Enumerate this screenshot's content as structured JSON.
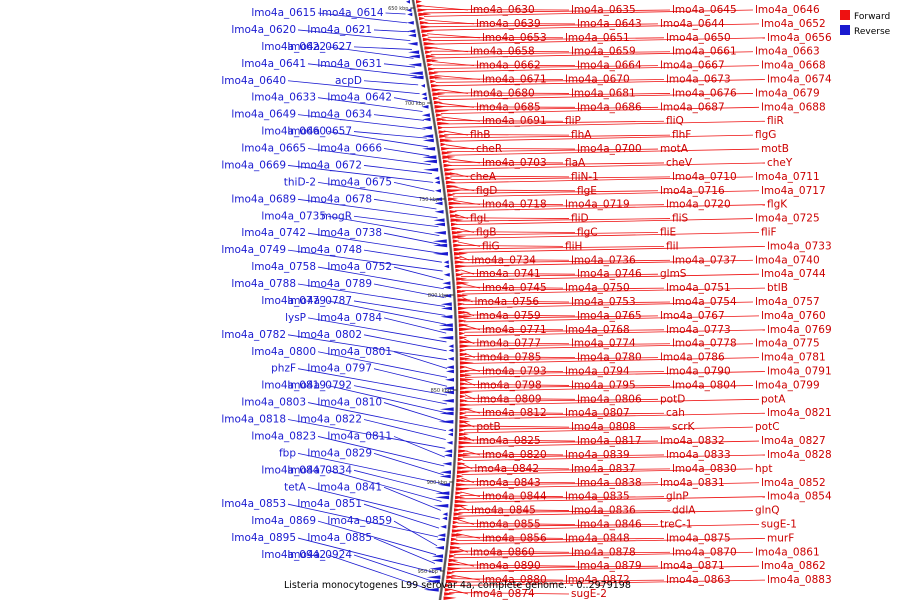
{
  "colors": {
    "forward": "#ee1111",
    "reverse": "#1a1ad0",
    "backbone": "#555555"
  },
  "title": "Listeria monocytogenes L99 serovar 4a, complete genome. - 0..2979198",
  "legend": [
    {
      "label": "Forward",
      "color": "#ee1111"
    },
    {
      "label": "Reverse",
      "color": "#1a1ad0"
    }
  ],
  "ticks": [
    "650 kbp",
    "700 kbp",
    "750 kbp",
    "800 kbp",
    "850 kbp",
    "900 kbp",
    "950 kbp"
  ],
  "reverse_labels": [
    "lmo4a_0614",
    "lmo4a_0615",
    "lmo4a_0621",
    "lmo4a_0620",
    "lmo4a_0627",
    "lmo4a_0622",
    "lmo4a_0631",
    "lmo4a_0641",
    "acpD",
    "lmo4a_0640",
    "lmo4a_0642",
    "lmo4a_0633",
    "lmo4a_0634",
    "lmo4a_0649",
    "lmo4a_0657",
    "lmo4a_0660",
    "lmo4a_0666",
    "lmo4a_0665",
    "lmo4a_0672",
    "lmo4a_0669",
    "lmo4a_0675",
    "thiD-2",
    "lmo4a_0678",
    "lmo4a_0689",
    "mogR",
    "lmo4a_0735",
    "lmo4a_0738",
    "lmo4a_0742",
    "lmo4a_0748",
    "lmo4a_0749",
    "lmo4a_0752",
    "lmo4a_0758",
    "lmo4a_0789",
    "lmo4a_0788",
    "lmo4a_0787",
    "lmo4a_0779",
    "lmo4a_0784",
    "lysP",
    "lmo4a_0802",
    "lmo4a_0782",
    "lmo4a_0801",
    "lmo4a_0800",
    "lmo4a_0797",
    "phzF",
    "lmo4a_0792",
    "lmo4a_0819",
    "lmo4a_0810",
    "lmo4a_0803",
    "lmo4a_0822",
    "lmo4a_0818",
    "lmo4a_0811",
    "lmo4a_0823",
    "lmo4a_0829",
    "fbp",
    "lmo4a_0834",
    "lmo4a_0847",
    "lmo4a_0841",
    "tetA",
    "lmo4a_0851",
    "lmo4a_0853",
    "lmo4a_0859",
    "lmo4a_0869",
    "lmo4a_0885",
    "lmo4a_0895",
    "lmo4a_0924",
    "lmo4a_0942"
  ],
  "forward_labels": [
    "lmo4a_0630",
    "lmo4a_0635",
    "lmo4a_0645",
    "lmo4a_0646",
    "lmo4a_0639",
    "lmo4a_0643",
    "lmo4a_0644",
    "lmo4a_0652",
    "lmo4a_0653",
    "lmo4a_0651",
    "lmo4a_0650",
    "lmo4a_0656",
    "lmo4a_0658",
    "lmo4a_0659",
    "lmo4a_0661",
    "lmo4a_0663",
    "lmo4a_0662",
    "lmo4a_0664",
    "lmo4a_0667",
    "lmo4a_0668",
    "lmo4a_0671",
    "lmo4a_0670",
    "lmo4a_0673",
    "lmo4a_0674",
    "lmo4a_0680",
    "lmo4a_0681",
    "lmo4a_0676",
    "lmo4a_0679",
    "lmo4a_0685",
    "lmo4a_0686",
    "lmo4a_0687",
    "lmo4a_0688",
    "lmo4a_0691",
    "fliP",
    "fliQ",
    "fliR",
    "flhB",
    "flhA",
    "flhF",
    "flgG",
    "cheR",
    "lmo4a_0700",
    "motA",
    "motB",
    "lmo4a_0703",
    "flaA",
    "cheV",
    "cheY",
    "cheA",
    "fliN-1",
    "lmo4a_0710",
    "lmo4a_0711",
    "flgD",
    "flgE",
    "lmo4a_0716",
    "lmo4a_0717",
    "lmo4a_0718",
    "lmo4a_0719",
    "lmo4a_0720",
    "flgK",
    "flgL",
    "fliD",
    "fliS",
    "lmo4a_0725",
    "flgB",
    "flgC",
    "fliE",
    "fliF",
    "fliG",
    "fliH",
    "fliI",
    "lmo4a_0733",
    "lmo4a_0734",
    "lmo4a_0736",
    "lmo4a_0737",
    "lmo4a_0740",
    "lmo4a_0741",
    "lmo4a_0746",
    "glmS",
    "lmo4a_0744",
    "lmo4a_0745",
    "lmo4a_0750",
    "lmo4a_0751",
    "btlB",
    "lmo4a_0756",
    "lmo4a_0753",
    "lmo4a_0754",
    "lmo4a_0757",
    "lmo4a_0759",
    "lmo4a_0765",
    "lmo4a_0767",
    "lmo4a_0760",
    "lmo4a_0771",
    "lmo4a_0768",
    "lmo4a_0773",
    "lmo4a_0769",
    "lmo4a_0777",
    "lmo4a_0774",
    "lmo4a_0778",
    "lmo4a_0775",
    "lmo4a_0785",
    "lmo4a_0780",
    "lmo4a_0786",
    "lmo4a_0781",
    "lmo4a_0793",
    "lmo4a_0794",
    "lmo4a_0790",
    "lmo4a_0791",
    "lmo4a_0798",
    "lmo4a_0795",
    "lmo4a_0804",
    "lmo4a_0799",
    "lmo4a_0809",
    "lmo4a_0806",
    "potD",
    "potA",
    "lmo4a_0812",
    "lmo4a_0807",
    "cah",
    "lmo4a_0821",
    "potB",
    "lmo4a_0808",
    "scrK",
    "potC",
    "lmo4a_0825",
    "lmo4a_0817",
    "lmo4a_0832",
    "lmo4a_0827",
    "lmo4a_0820",
    "lmo4a_0839",
    "lmo4a_0833",
    "lmo4a_0828",
    "lmo4a_0842",
    "lmo4a_0837",
    "lmo4a_0830",
    "hpt",
    "lmo4a_0843",
    "lmo4a_0838",
    "lmo4a_0831",
    "lmo4a_0852",
    "lmo4a_0844",
    "lmo4a_0835",
    "glnP",
    "lmo4a_0854",
    "lmo4a_0845",
    "lmo4a_0836",
    "ddlA",
    "glnQ",
    "lmo4a_0855",
    "lmo4a_0846",
    "treC-1",
    "sugE-1",
    "lmo4a_0856",
    "lmo4a_0848",
    "lmo4a_0875",
    "murF",
    "lmo4a_0860",
    "lmo4a_0878",
    "lmo4a_0870",
    "lmo4a_0861",
    "lmo4a_0890",
    "lmo4a_0879",
    "lmo4a_0871",
    "lmo4a_0862",
    "lmo4a_0880",
    "lmo4a_0872",
    "lmo4a_0863",
    "lmo4a_0883",
    "lmo4a_0874",
    "sugE-2"
  ]
}
